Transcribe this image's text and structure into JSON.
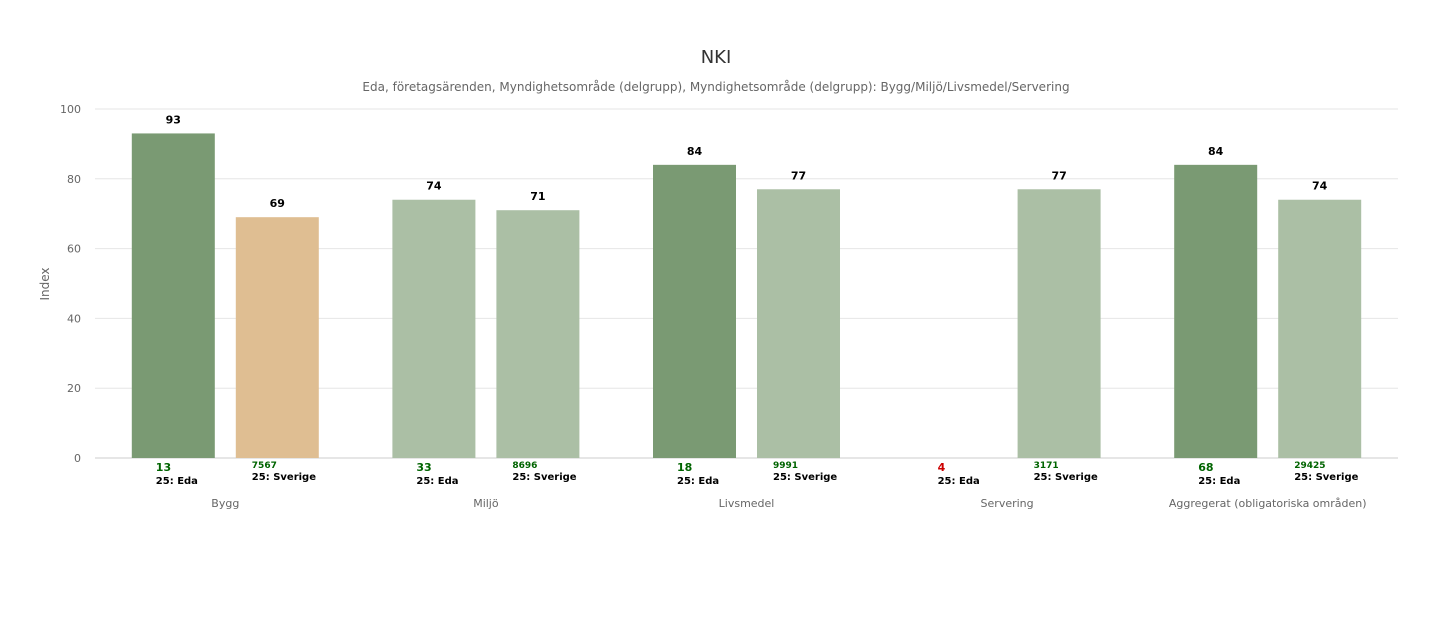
{
  "chart_data": {
    "type": "bar",
    "title": "NKI",
    "subtitle": "Eda, företagsärenden, Myndighetsområde (delgrupp), Myndighetsområde (delgrupp): Bygg/Miljö/Livsmedel/Servering",
    "ylabel": "Index",
    "xlabel": "",
    "ylim": [
      0,
      100
    ],
    "yticks": [
      "0",
      "20",
      "40",
      "60",
      "80",
      "100"
    ],
    "grid": true,
    "legend": "none",
    "colors": {
      "eda_strong": "#7a9a73",
      "light_green": "#abbfa5",
      "beige": "#dfbe92",
      "count_green": "#006400",
      "count_red": "#cc0000",
      "grid": "#e6e6e6"
    },
    "categories": [
      "Bygg",
      "Miljö",
      "Livsmedel",
      "Servering",
      "Aggregerat (obligatoriska områden)"
    ],
    "series": [
      {
        "values": [
          93,
          74,
          84,
          null,
          84
        ],
        "value_labels": [
          "93",
          "74",
          "84",
          "",
          "84"
        ],
        "counts": [
          "13",
          "33",
          "18",
          "4",
          "68"
        ],
        "sublabels": [
          "25: Eda",
          "25: Eda",
          "25: Eda",
          "25: Eda",
          "25: Eda"
        ],
        "colors": [
          "#7a9a73",
          "#abbfa5",
          "#7a9a73",
          "#abbfa5",
          "#7a9a73"
        ],
        "count_colors": [
          "#006400",
          "#006400",
          "#006400",
          "#cc0000",
          "#006400"
        ]
      },
      {
        "values": [
          69,
          71,
          77,
          77,
          74
        ],
        "value_labels": [
          "69",
          "71",
          "77",
          "77",
          "74"
        ],
        "counts": [
          "7567",
          "8696",
          "9991",
          "3171",
          "29425"
        ],
        "sublabels": [
          "25: Sverige",
          "25: Sverige",
          "25: Sverige",
          "25: Sverige",
          "25: Sverige"
        ],
        "colors": [
          "#dfbe92",
          "#abbfa5",
          "#abbfa5",
          "#abbfa5",
          "#abbfa5"
        ],
        "count_colors": [
          "#006400",
          "#006400",
          "#006400",
          "#006400",
          "#006400"
        ]
      }
    ]
  }
}
